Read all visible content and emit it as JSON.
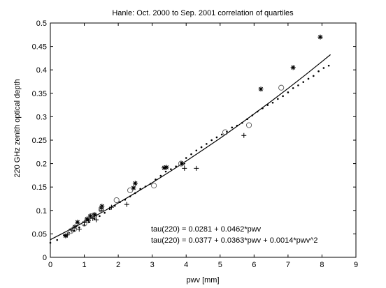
{
  "chart_data": {
    "type": "scatter",
    "title": "Hanle: Oct. 2000 to Sep. 2001 correlation of quartiles",
    "xlabel": "pwv  [mm]",
    "ylabel": "220 GHz zenith optical depth",
    "xlim": [
      0,
      9
    ],
    "ylim": [
      0,
      0.5
    ],
    "xticks": [
      0,
      1,
      2,
      3,
      4,
      5,
      6,
      7,
      8,
      9
    ],
    "yticks": [
      0,
      0.05,
      0.1,
      0.15,
      0.2,
      0.25,
      0.3,
      0.35,
      0.4,
      0.45,
      0.5
    ],
    "xtick_labels": [
      "0",
      "1",
      "2",
      "3",
      "4",
      "5",
      "6",
      "7",
      "8",
      "9"
    ],
    "ytick_labels": [
      "0",
      "0.05",
      "0.1",
      "0.15",
      "0.2",
      "0.25",
      "0.3",
      "0.35",
      "0.4",
      "0.45",
      "0.5"
    ],
    "grid": false,
    "annotations": [
      "tau(220) = 0.0281 + 0.0462*pwv",
      "tau(220) = 0.0377 + 0.0363*pwv + 0.0014*pwv^2"
    ],
    "series": [
      {
        "marker": "dot",
        "x": [
          0.0,
          0.2,
          0.4,
          0.55,
          0.7,
          0.85,
          1.0,
          1.15,
          1.3,
          1.45,
          1.6,
          1.75,
          1.9,
          2.05,
          2.2,
          2.35,
          2.5,
          2.65,
          2.8,
          2.95,
          3.1,
          3.25,
          3.4,
          3.55,
          3.7,
          3.85,
          4.0,
          4.15,
          4.3,
          4.45,
          4.6,
          4.75,
          4.9,
          5.05,
          5.2,
          5.35,
          5.5,
          5.65,
          5.8,
          5.95,
          6.1,
          6.25,
          6.4,
          6.55,
          6.7,
          6.85,
          7.0,
          7.15,
          7.3,
          7.45,
          7.6,
          7.75,
          7.9,
          8.05,
          8.2
        ],
        "y": [
          0.031,
          0.037,
          0.047,
          0.052,
          0.057,
          0.064,
          0.069,
          0.075,
          0.082,
          0.088,
          0.095,
          0.103,
          0.11,
          0.118,
          0.123,
          0.13,
          0.137,
          0.146,
          0.151,
          0.157,
          0.166,
          0.174,
          0.183,
          0.188,
          0.194,
          0.202,
          0.212,
          0.22,
          0.228,
          0.235,
          0.242,
          0.25,
          0.256,
          0.262,
          0.268,
          0.277,
          0.281,
          0.287,
          0.295,
          0.303,
          0.311,
          0.318,
          0.325,
          0.33,
          0.338,
          0.344,
          0.352,
          0.361,
          0.367,
          0.374,
          0.381,
          0.387,
          0.397,
          0.404,
          0.409
        ]
      },
      {
        "marker": "star",
        "x": [
          0.45,
          0.72,
          0.8,
          1.08,
          1.18,
          1.3,
          1.5,
          1.52,
          2.45,
          2.5,
          3.35,
          3.42,
          3.9,
          6.2,
          7.15,
          7.95
        ],
        "y": [
          0.046,
          0.065,
          0.075,
          0.082,
          0.088,
          0.091,
          0.106,
          0.109,
          0.148,
          0.158,
          0.191,
          0.192,
          0.2,
          0.359,
          0.405,
          0.47
        ]
      },
      {
        "marker": "plus",
        "x": [
          0.5,
          0.62,
          0.85,
          1.0,
          1.12,
          1.25,
          1.35,
          1.5,
          1.8,
          2.25,
          3.95,
          4.3,
          5.7
        ],
        "y": [
          0.048,
          0.058,
          0.06,
          0.074,
          0.078,
          0.083,
          0.08,
          0.1,
          0.107,
          0.113,
          0.19,
          0.19,
          0.26
        ]
      },
      {
        "marker": "circle",
        "x": [
          0.6,
          0.7,
          1.0,
          1.1,
          1.2,
          1.3,
          1.5,
          1.95,
          2.35,
          3.05,
          3.85,
          5.15,
          5.85,
          6.8
        ],
        "y": [
          0.056,
          0.06,
          0.072,
          0.08,
          0.088,
          0.09,
          0.102,
          0.122,
          0.143,
          0.153,
          0.2,
          0.267,
          0.282,
          0.362
        ]
      }
    ],
    "curve": {
      "type": "line",
      "x": [
        0,
        0.5,
        1,
        1.5,
        2,
        2.5,
        3,
        3.5,
        4,
        4.5,
        5,
        5.5,
        6,
        6.5,
        7,
        7.5,
        8,
        8.25
      ],
      "y": [
        0.0377,
        0.0562,
        0.0754,
        0.0953,
        0.1159,
        0.1372,
        0.1592,
        0.1819,
        0.2053,
        0.2294,
        0.2542,
        0.2797,
        0.3059,
        0.3328,
        0.3604,
        0.3887,
        0.4177,
        0.4325
      ]
    }
  }
}
